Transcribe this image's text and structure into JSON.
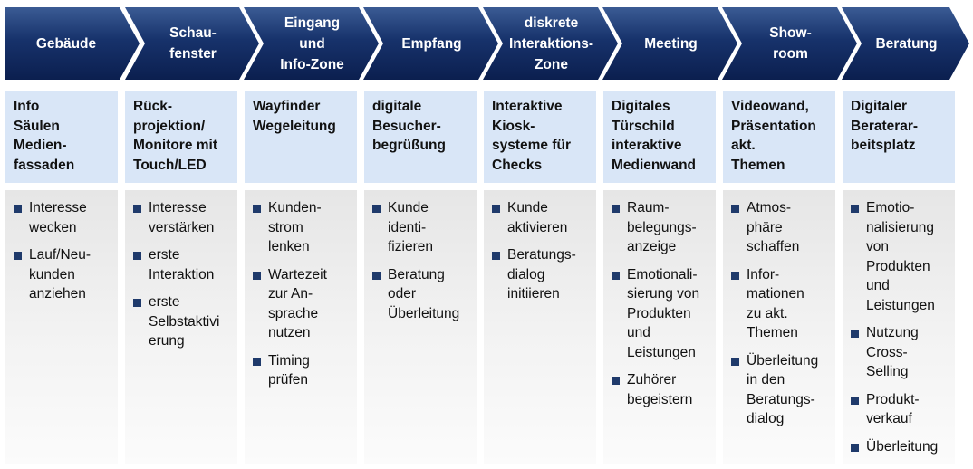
{
  "colors": {
    "chevron": "#143069",
    "chevron_light": "#3b5b94",
    "header_bg": "#d9e6f7",
    "bullet": "#1f3a6b"
  },
  "columns": [
    {
      "stage": "Gebäude",
      "heading": "Info\nSäulen\nMedien-\nfassaden",
      "bullets": [
        "Interesse\nwecken",
        "Lauf/Neu-\nkunden\nanziehen"
      ]
    },
    {
      "stage": "Schau-\nfenster",
      "heading": "Rück-\nprojektion/\nMonitore mit\nTouch/LED",
      "bullets": [
        "Interesse\nverstärken",
        "erste\nInteraktion",
        "erste\nSelbstaktivi\nerung"
      ]
    },
    {
      "stage": "Eingang\nund\nInfo-Zone",
      "heading": "Wayfinder\nWegeleitung",
      "bullets": [
        "Kunden-\nstrom\nlenken",
        "Wartezeit\nzur An-\nsprache\nnutzen",
        "Timing\nprüfen"
      ]
    },
    {
      "stage": "Empfang",
      "heading": "digitale\nBesucher-\nbegrüßung",
      "bullets": [
        "Kunde\nidenti-\nfizieren",
        "Beratung\noder\nÜberleitung"
      ]
    },
    {
      "stage": "diskrete\nInteraktions-\nZone",
      "heading": "Interaktive\nKiosk-\nsysteme für\nChecks",
      "bullets": [
        "Kunde\naktivieren",
        "Beratungs-\ndialog\ninitiieren"
      ]
    },
    {
      "stage": "Meeting",
      "heading": "Digitales\nTürschild\ninteraktive\nMedienwand",
      "bullets": [
        "Raum-\nbelegungs-\nanzeige",
        "Emotionali-\nsierung von\nProdukten\nund\nLeistungen",
        "Zuhörer\nbegeistern"
      ]
    },
    {
      "stage": "Show-\nroom",
      "heading": "Videowand,\nPräsentation\nakt.\nThemen",
      "bullets": [
        "Atmos-\nphäre\nschaffen",
        "Infor-\nmationen\nzu akt.\nThemen",
        "Überleitung\nin den\nBeratungs-\ndialog"
      ]
    },
    {
      "stage": "Beratung",
      "heading": "Digitaler\nBeraterar-\nbeitsplatz",
      "bullets": [
        "Emotio-\nnalisierung\nvon\nProdukten\nund\nLeistungen",
        "Nutzung\nCross-\nSelling",
        "Produkt-\nverkauf",
        "Überleitung"
      ]
    }
  ]
}
